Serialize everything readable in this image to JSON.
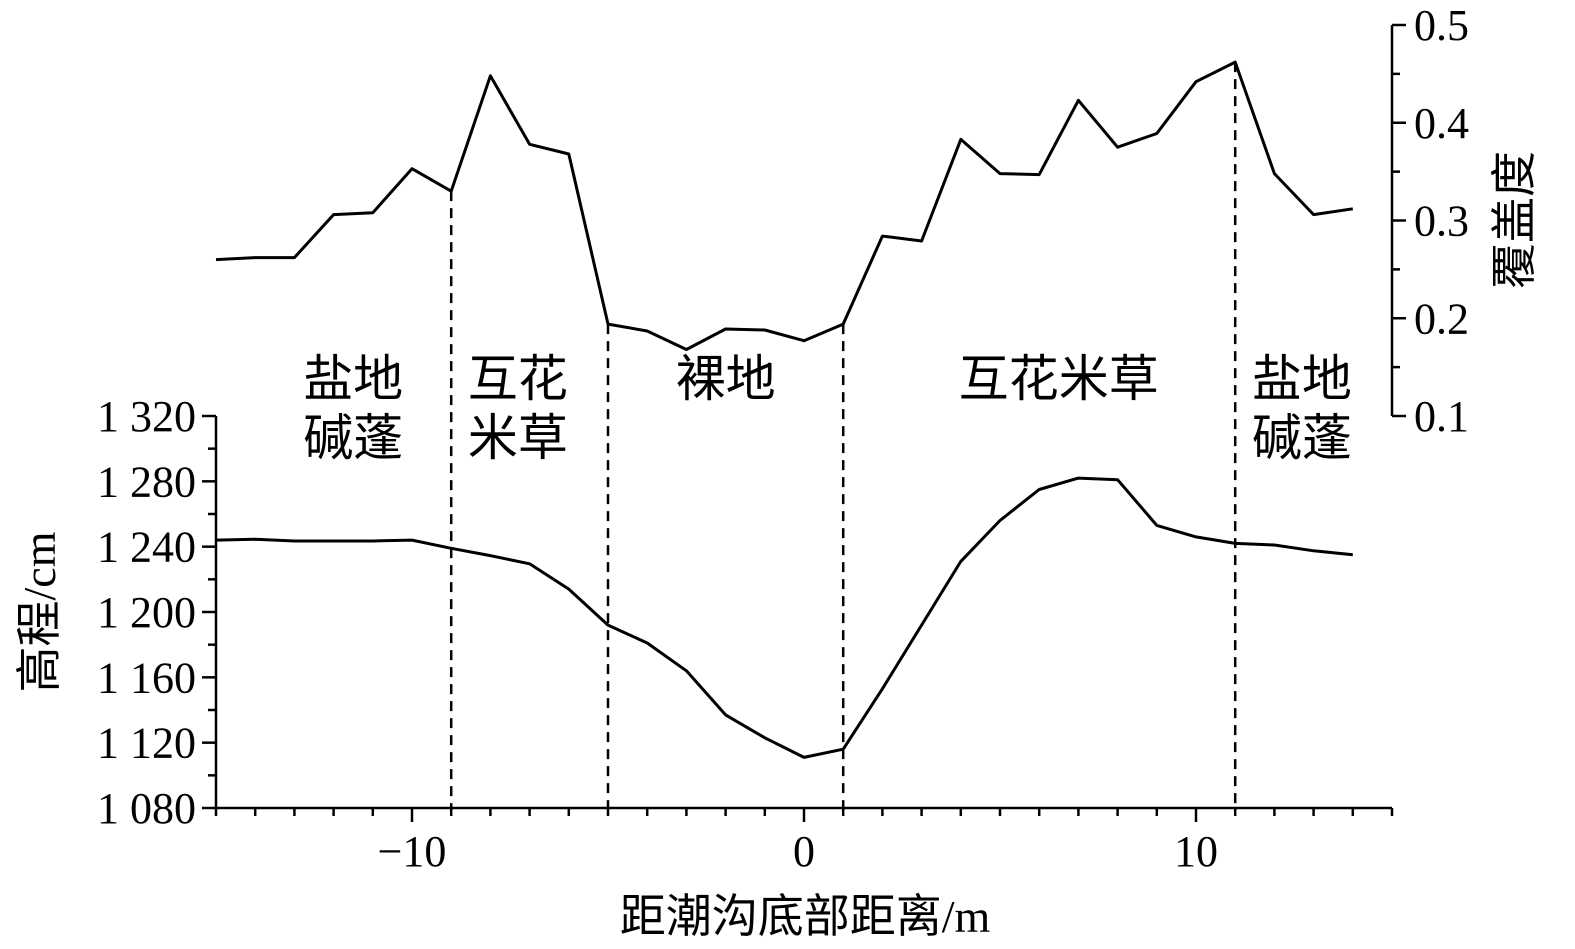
{
  "chart_data": {
    "type": "line",
    "xlabel": "距潮沟底部距离/m",
    "xlim": [
      -15,
      15
    ],
    "x_ticks": [
      -10,
      0,
      10
    ],
    "x_tick_labels": [
      "−10",
      "0",
      "10"
    ],
    "grid": false,
    "elevation": {
      "ylabel": "高程/cm",
      "ylim": [
        1080,
        1320
      ],
      "y_ticks": [
        1080,
        1120,
        1160,
        1200,
        1240,
        1280,
        1320
      ],
      "y_tick_labels": [
        "1 080",
        "1 120",
        "1 160",
        "1 200",
        "1 240",
        "1 280",
        "1 320"
      ],
      "x": [
        -15,
        -14,
        -13,
        -12,
        -11,
        -10,
        -9,
        -8,
        -7,
        -6,
        -5,
        -4,
        -3,
        -2,
        -1,
        0,
        1,
        2,
        3,
        4,
        5,
        6,
        7,
        8,
        9,
        10,
        11,
        12,
        13,
        14
      ],
      "values": [
        1244,
        1244.5,
        1243.5,
        1243.5,
        1243.5,
        1244,
        1239,
        1234.5,
        1229.5,
        1214,
        1192,
        1181,
        1164,
        1137,
        1123,
        1111,
        1116,
        1153,
        1192,
        1231,
        1256,
        1275,
        1282,
        1281,
        1253,
        1246,
        1242,
        1241,
        1237.5,
        1235
      ]
    },
    "coverage": {
      "ylabel": "覆盖度",
      "ylim": [
        0.1,
        0.5
      ],
      "y_ticks": [
        0.1,
        0.2,
        0.3,
        0.4,
        0.5
      ],
      "y_tick_labels": [
        "0.1",
        "0.2",
        "0.3",
        "0.4",
        "0.5"
      ],
      "x": [
        -15,
        -14,
        -13,
        -12,
        -11,
        -10,
        -9,
        -8,
        -7,
        -6,
        -5,
        -4,
        -3,
        -2,
        -1,
        0,
        1,
        2,
        3,
        4,
        5,
        6,
        7,
        8,
        9,
        10,
        11,
        12,
        13,
        14
      ],
      "values": [
        0.26,
        0.262,
        0.262,
        0.306,
        0.308,
        0.353,
        0.33,
        0.448,
        0.378,
        0.368,
        0.194,
        0.187,
        0.168,
        0.189,
        0.188,
        0.177,
        0.194,
        0.284,
        0.279,
        0.383,
        0.348,
        0.347,
        0.423,
        0.375,
        0.389,
        0.442,
        0.462,
        0.348,
        0.306,
        0.312
      ]
    },
    "boundaries_x": [
      -9,
      -5,
      1,
      11
    ],
    "zones": [
      {
        "lines": [
          "盐地",
          "碱蓬"
        ],
        "x_center": -11.5
      },
      {
        "lines": [
          "互花",
          "米草"
        ],
        "x_center": -7.3
      },
      {
        "lines": [
          "裸地"
        ],
        "x_center": -2
      },
      {
        "lines": [
          "互花米草"
        ],
        "x_center": 6.5
      },
      {
        "lines": [
          "盐地",
          "碱蓬"
        ],
        "x_center": 12.7
      }
    ]
  }
}
